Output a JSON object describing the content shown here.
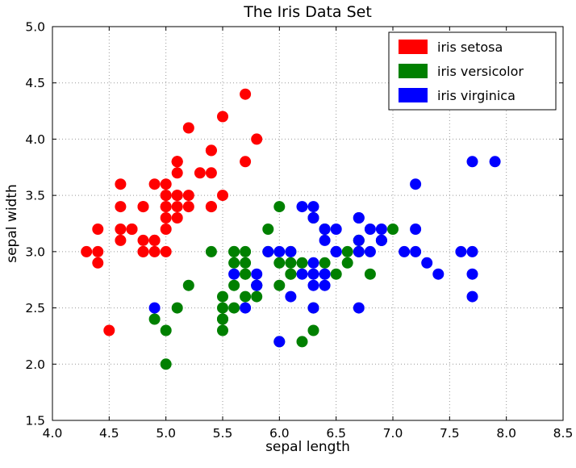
{
  "chart_data": {
    "type": "scatter",
    "title": "The Iris Data Set",
    "xlabel": "sepal length",
    "ylabel": "sepal width",
    "xlim": [
      4.0,
      8.5
    ],
    "ylim": [
      1.5,
      5.0
    ],
    "xticks": [
      "4.0",
      "4.5",
      "5.0",
      "5.5",
      "6.0",
      "6.5",
      "7.0",
      "7.5",
      "8.0",
      "8.5"
    ],
    "yticks": [
      "1.5",
      "2.0",
      "2.5",
      "3.0",
      "3.5",
      "4.0",
      "4.5",
      "5.0"
    ],
    "grid": true,
    "grid_style": "dotted",
    "grid_color": "#999999",
    "legend_position": "upper right",
    "marker": "circle",
    "marker_radius": 7,
    "series": [
      {
        "name": "setosa",
        "label": "iris setosa",
        "color": "#ff0000",
        "points": [
          [
            5.1,
            3.5
          ],
          [
            4.9,
            3.0
          ],
          [
            4.7,
            3.2
          ],
          [
            4.6,
            3.1
          ],
          [
            5.0,
            3.6
          ],
          [
            5.4,
            3.9
          ],
          [
            4.6,
            3.4
          ],
          [
            5.0,
            3.4
          ],
          [
            4.4,
            2.9
          ],
          [
            4.9,
            3.1
          ],
          [
            5.4,
            3.7
          ],
          [
            4.8,
            3.4
          ],
          [
            4.8,
            3.0
          ],
          [
            4.3,
            3.0
          ],
          [
            5.8,
            4.0
          ],
          [
            5.7,
            4.4
          ],
          [
            5.4,
            3.9
          ],
          [
            5.1,
            3.5
          ],
          [
            5.7,
            3.8
          ],
          [
            5.1,
            3.8
          ],
          [
            5.4,
            3.4
          ],
          [
            5.1,
            3.7
          ],
          [
            4.6,
            3.6
          ],
          [
            5.1,
            3.3
          ],
          [
            4.8,
            3.4
          ],
          [
            5.0,
            3.0
          ],
          [
            5.0,
            3.4
          ],
          [
            5.2,
            3.5
          ],
          [
            5.2,
            3.4
          ],
          [
            4.7,
            3.2
          ],
          [
            4.8,
            3.1
          ],
          [
            5.4,
            3.4
          ],
          [
            5.2,
            4.1
          ],
          [
            5.5,
            4.2
          ],
          [
            4.9,
            3.1
          ],
          [
            5.0,
            3.2
          ],
          [
            5.5,
            3.5
          ],
          [
            4.9,
            3.6
          ],
          [
            4.4,
            3.0
          ],
          [
            5.1,
            3.4
          ],
          [
            5.0,
            3.5
          ],
          [
            4.5,
            2.3
          ],
          [
            4.4,
            3.2
          ],
          [
            5.0,
            3.5
          ],
          [
            5.1,
            3.8
          ],
          [
            4.8,
            3.0
          ],
          [
            5.1,
            3.8
          ],
          [
            4.6,
            3.2
          ],
          [
            5.3,
            3.7
          ],
          [
            5.0,
            3.3
          ]
        ]
      },
      {
        "name": "versicolor",
        "label": "iris versicolor",
        "color": "#008000",
        "points": [
          [
            7.0,
            3.2
          ],
          [
            6.4,
            3.2
          ],
          [
            6.9,
            3.1
          ],
          [
            5.5,
            2.3
          ],
          [
            6.5,
            2.8
          ],
          [
            5.7,
            2.8
          ],
          [
            6.3,
            3.3
          ],
          [
            4.9,
            2.4
          ],
          [
            6.6,
            2.9
          ],
          [
            5.2,
            2.7
          ],
          [
            5.0,
            2.0
          ],
          [
            5.9,
            3.0
          ],
          [
            6.0,
            2.2
          ],
          [
            6.1,
            2.9
          ],
          [
            5.6,
            2.9
          ],
          [
            6.7,
            3.1
          ],
          [
            5.6,
            3.0
          ],
          [
            5.8,
            2.7
          ],
          [
            6.2,
            2.2
          ],
          [
            5.6,
            2.5
          ],
          [
            5.9,
            3.2
          ],
          [
            6.1,
            2.8
          ],
          [
            6.3,
            2.5
          ],
          [
            6.1,
            2.8
          ],
          [
            6.4,
            2.9
          ],
          [
            6.6,
            3.0
          ],
          [
            6.8,
            2.8
          ],
          [
            6.7,
            3.0
          ],
          [
            6.0,
            2.9
          ],
          [
            5.7,
            2.6
          ],
          [
            5.5,
            2.4
          ],
          [
            5.5,
            2.4
          ],
          [
            5.8,
            2.7
          ],
          [
            6.0,
            2.7
          ],
          [
            5.4,
            3.0
          ],
          [
            6.0,
            3.4
          ],
          [
            6.7,
            3.1
          ],
          [
            6.3,
            2.3
          ],
          [
            5.6,
            3.0
          ],
          [
            5.5,
            2.5
          ],
          [
            5.5,
            2.6
          ],
          [
            6.1,
            3.0
          ],
          [
            5.8,
            2.6
          ],
          [
            5.0,
            2.3
          ],
          [
            5.6,
            2.7
          ],
          [
            5.7,
            3.0
          ],
          [
            5.7,
            2.9
          ],
          [
            6.2,
            2.9
          ],
          [
            5.1,
            2.5
          ],
          [
            5.7,
            2.8
          ]
        ]
      },
      {
        "name": "virginica",
        "label": "iris virginica",
        "color": "#0000ff",
        "points": [
          [
            6.3,
            3.3
          ],
          [
            5.8,
            2.7
          ],
          [
            7.1,
            3.0
          ],
          [
            6.3,
            2.9
          ],
          [
            6.5,
            3.0
          ],
          [
            7.6,
            3.0
          ],
          [
            4.9,
            2.5
          ],
          [
            7.3,
            2.9
          ],
          [
            6.7,
            2.5
          ],
          [
            7.2,
            3.6
          ],
          [
            6.5,
            3.2
          ],
          [
            6.4,
            2.7
          ],
          [
            6.8,
            3.0
          ],
          [
            5.7,
            2.5
          ],
          [
            5.8,
            2.8
          ],
          [
            6.4,
            3.2
          ],
          [
            6.5,
            3.0
          ],
          [
            7.7,
            3.8
          ],
          [
            7.7,
            2.6
          ],
          [
            6.0,
            2.2
          ],
          [
            6.9,
            3.2
          ],
          [
            5.6,
            2.8
          ],
          [
            7.7,
            2.8
          ],
          [
            6.3,
            2.7
          ],
          [
            6.7,
            3.3
          ],
          [
            7.2,
            3.2
          ],
          [
            6.2,
            2.8
          ],
          [
            6.1,
            3.0
          ],
          [
            6.4,
            2.8
          ],
          [
            7.2,
            3.0
          ],
          [
            7.4,
            2.8
          ],
          [
            7.9,
            3.8
          ],
          [
            6.4,
            2.8
          ],
          [
            6.3,
            2.8
          ],
          [
            6.1,
            2.6
          ],
          [
            7.7,
            3.0
          ],
          [
            6.3,
            3.4
          ],
          [
            6.4,
            3.1
          ],
          [
            6.0,
            3.0
          ],
          [
            6.9,
            3.1
          ],
          [
            6.7,
            3.1
          ],
          [
            6.9,
            3.1
          ],
          [
            5.8,
            2.7
          ],
          [
            6.8,
            3.2
          ],
          [
            6.7,
            3.3
          ],
          [
            6.7,
            3.0
          ],
          [
            6.3,
            2.5
          ],
          [
            6.5,
            3.0
          ],
          [
            6.2,
            3.4
          ],
          [
            5.9,
            3.0
          ]
        ]
      }
    ]
  }
}
